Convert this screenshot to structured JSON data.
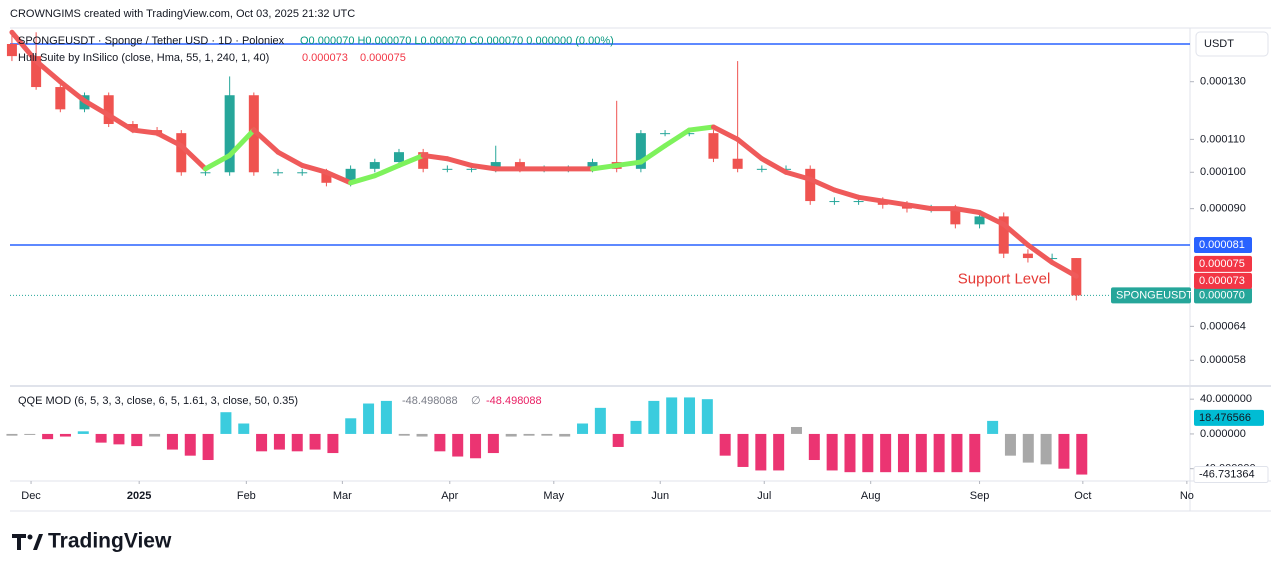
{
  "header": {
    "credit": "CROWNGIMS created with TradingView.com, Oct 03, 2025 21:32 UTC",
    "currency": "USDT"
  },
  "footer": {
    "brand": "TradingView"
  },
  "chart_data": [
    {
      "type": "candlestick",
      "title": "SPONGEUSDT · Sponge / Tether USD · 1D · Poloniex",
      "ohlc_legend": "O0.000070  H0.000070  L0.000070  C0.000070  0.000000 (0.00%)",
      "indicator": {
        "name": "Hull Suite by InSilico (close, Hma, 55, 1, 240, 1, 40)",
        "values": [
          7.3e-05,
          7.5e-05
        ],
        "color": "#f23645"
      },
      "open": [
        0.000145,
        0.00014,
        0.000128,
        0.00012,
        0.000125,
        0.000115,
        0.000113,
        0.000112,
        0.0001,
        0.0001,
        0.000125,
        0.0001,
        0.0001,
        0.0001,
        9.7e-05,
        0.000101,
        0.000103,
        0.000106,
        0.000101,
        0.000101,
        0.000101,
        0.000103,
        0.000101,
        0.000101,
        0.000101,
        0.000103,
        0.000101,
        0.000112,
        0.000112,
        0.000112,
        0.000104,
        0.000101,
        0.000101,
        0.000101,
        9.2e-05,
        9.2e-05,
        9.2e-05,
        9.1e-05,
        9e-05,
        9e-05,
        8.6e-05,
        8.8e-05,
        7.9e-05,
        7.8e-05,
        7.8e-05
      ],
      "high": [
        0.00015,
        0.00015,
        0.00013,
        0.000126,
        0.000126,
        0.000116,
        0.000114,
        0.000113,
        0.000101,
        0.000132,
        0.000126,
        0.000101,
        0.000101,
        0.000101,
        0.000102,
        0.000104,
        0.000107,
        0.000107,
        0.000102,
        0.000102,
        0.000108,
        0.000104,
        0.000102,
        0.000102,
        0.000104,
        0.000123,
        0.000113,
        0.000113,
        0.000113,
        0.000113,
        0.000138,
        0.000102,
        0.000102,
        0.000102,
        9.3e-05,
        9.3e-05,
        9.3e-05,
        9.2e-05,
        9.1e-05,
        9.1e-05,
        8.9e-05,
        8.9e-05,
        8e-05,
        7.9e-05,
        7.8e-05
      ],
      "low": [
        0.000138,
        0.000127,
        0.000119,
        0.000119,
        0.000114,
        0.000112,
        0.000111,
        9.9e-05,
        9.9e-05,
        9.9e-05,
        9.9e-05,
        9.9e-05,
        9.9e-05,
        9.6e-05,
        9.6e-05,
        0.0001,
        0.000102,
        0.0001,
        0.0001,
        0.0001,
        0.0001,
        0.0001,
        0.0001,
        0.0001,
        0.0001,
        0.0001,
        0.0001,
        0.000111,
        0.000111,
        0.000103,
        0.0001,
        0.0001,
        0.0001,
        9.1e-05,
        9.1e-05,
        9.1e-05,
        9e-05,
        8.9e-05,
        8.9e-05,
        8.5e-05,
        8.5e-05,
        7.8e-05,
        7.7e-05,
        7.7e-05,
        6.9e-05
      ],
      "close": [
        0.00014,
        0.000128,
        0.00012,
        0.000125,
        0.000115,
        0.000113,
        0.000112,
        0.0001,
        0.0001,
        0.000125,
        0.0001,
        0.0001,
        0.0001,
        9.7e-05,
        0.000101,
        0.000103,
        0.000106,
        0.000101,
        0.000101,
        0.000101,
        0.000103,
        0.000101,
        0.000101,
        0.000101,
        0.000103,
        0.000101,
        0.000112,
        0.000112,
        0.000112,
        0.000104,
        0.000101,
        0.000101,
        0.000101,
        9.2e-05,
        9.2e-05,
        9.2e-05,
        9.1e-05,
        9e-05,
        9e-05,
        8.6e-05,
        8.8e-05,
        7.9e-05,
        7.8e-05,
        7.8e-05,
        7e-05
      ],
      "up_color": "#26a69a",
      "down_color": "#ef5350",
      "hull": {
        "values": [
          0.00015,
          0.000138,
          0.00013,
          0.000123,
          0.000118,
          0.000113,
          0.000112,
          0.000108,
          0.000101,
          0.000105,
          0.000113,
          0.000106,
          0.000102,
          0.0001,
          9.7e-05,
          9.9e-05,
          0.000102,
          0.000105,
          0.000104,
          0.000102,
          0.000101,
          0.000101,
          0.000101,
          0.000101,
          0.000101,
          0.000102,
          0.000103,
          0.000108,
          0.000113,
          0.000114,
          0.00011,
          0.000104,
          0.0001,
          9.8e-05,
          9.5e-05,
          9.3e-05,
          9.2e-05,
          9.1e-05,
          9e-05,
          9e-05,
          8.9e-05,
          8.6e-05,
          8.1e-05,
          7.7e-05,
          7.4e-05
        ],
        "up_color": "#7ef25c",
        "down_color": "#ef5a5a"
      },
      "hlines": [
        {
          "value": 0.000145,
          "color": "#2962ff"
        },
        {
          "value": 8.1e-05,
          "color": "#2962ff"
        }
      ],
      "price_badges": [
        {
          "value": 8.1e-05,
          "color": "#2962ff"
        },
        {
          "name": "SPONGEUSDT",
          "value": {
            "value": 7e-05,
            "label": "0.000070"
          },
          "color": "#26a69a"
        }
      ],
      "annotation": {
        "text": "Support Level",
        "color": "#e53935"
      },
      "log_scale": true,
      "grid": false,
      "ylim": [
        5.4e-05,
        0.000151
      ],
      "yticks": [
        5.8e-05,
        6.4e-05,
        {
          "value": 9e-05,
          "label": "0.000090"
        },
        {
          "value": 0.0001,
          "label": "0.000100"
        },
        {
          "value": 0.00011,
          "label": "0.000110"
        },
        {
          "value": 0.00013,
          "label": "0.000130"
        }
      ],
      "xlim": [
        -0.08,
        48.7
      ],
      "xticks": [
        {
          "value": 0.79,
          "label": "Dec"
        },
        {
          "value": 5.26,
          "label": "2025"
        },
        {
          "value": 9.69,
          "label": "Feb"
        },
        {
          "value": 13.66,
          "label": "Mar"
        },
        {
          "value": 18.1,
          "label": "Apr"
        },
        {
          "value": 22.4,
          "label": "May"
        },
        {
          "value": 26.8,
          "label": "Jun"
        },
        {
          "value": 31.1,
          "label": "Jul"
        },
        {
          "value": 35.5,
          "label": "Aug"
        },
        {
          "value": 40.0,
          "label": "Sep"
        },
        {
          "value": 44.27,
          "label": "Oct"
        },
        {
          "value": 48.57,
          "label": "No"
        }
      ]
    },
    {
      "type": "bar",
      "title": "QQE MOD (6, 5, 3, 3, close, 6, 5, 1.61, 3, close, 50, 0.35)",
      "legend_values": [
        -48.498088,
        -48.498088
      ],
      "legend_symbol": "∅",
      "legend_colors": [
        "#787b86",
        "#e91e63"
      ],
      "values": [
        -2,
        -1,
        -6,
        -3,
        3,
        -10,
        -12,
        -14,
        -3,
        -18,
        -25,
        -30,
        25,
        12,
        -20,
        -18,
        -20,
        -18,
        -22,
        18,
        35,
        38,
        -2,
        -3,
        -20,
        -26,
        -28,
        -22,
        -3,
        -2,
        -2,
        -3,
        12,
        30,
        -15,
        15,
        38,
        42,
        42,
        40,
        -25,
        -38,
        -42,
        -42,
        8,
        -30,
        -42,
        -44,
        -44,
        -44,
        -44,
        -44,
        -44,
        -44,
        -44,
        15,
        -25,
        -33,
        -35,
        -40,
        -46.731364
      ],
      "colors": [
        "#9e9e9e",
        "#9e9e9e",
        "#e91e63",
        "#e91e63",
        "#26c6da",
        "#e91e63",
        "#e91e63",
        "#e91e63",
        "#9e9e9e",
        "#e91e63",
        "#e91e63",
        "#e91e63",
        "#26c6da",
        "#26c6da",
        "#e91e63",
        "#e91e63",
        "#e91e63",
        "#e91e63",
        "#e91e63",
        "#26c6da",
        "#26c6da",
        "#26c6da",
        "#9e9e9e",
        "#9e9e9e",
        "#e91e63",
        "#e91e63",
        "#e91e63",
        "#e91e63",
        "#9e9e9e",
        "#9e9e9e",
        "#9e9e9e",
        "#9e9e9e",
        "#26c6da",
        "#26c6da",
        "#e91e63",
        "#26c6da",
        "#26c6da",
        "#26c6da",
        "#26c6da",
        "#26c6da",
        "#e91e63",
        "#e91e63",
        "#e91e63",
        "#e91e63",
        "#9e9e9e",
        "#e91e63",
        "#e91e63",
        "#e91e63",
        "#e91e63",
        "#e91e63",
        "#e91e63",
        "#e91e63",
        "#e91e63",
        "#e91e63",
        "#e91e63",
        "#26c6da",
        "#9e9e9e",
        "#9e9e9e",
        "#9e9e9e",
        "#e91e63",
        "#e91e63"
      ],
      "badges": [
        {
          "value": 18.476566,
          "color": "#00bcd4"
        }
      ],
      "ylim": [
        -53,
        54
      ],
      "yticks": [
        {
          "value": 40,
          "label": "40.000000"
        },
        {
          "value": 0,
          "label": "0.000000"
        },
        {
          "value": -40,
          "label": "-40.000000"
        }
      ],
      "xlim": [
        -0.11,
        66.07
      ]
    }
  ]
}
